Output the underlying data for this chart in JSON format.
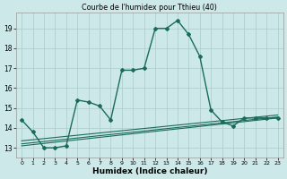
{
  "title": "Courbe de l'humidex pour Tthieu (40)",
  "xlabel": "Humidex (Indice chaleur)",
  "bg_color": "#cce8e8",
  "grid_color": "#aacccc",
  "line_color": "#1a6b5a",
  "xlim": [
    -0.5,
    23.5
  ],
  "ylim": [
    12.5,
    19.8
  ],
  "yticks": [
    13,
    14,
    15,
    16,
    17,
    18,
    19
  ],
  "xticks": [
    0,
    1,
    2,
    3,
    4,
    5,
    6,
    7,
    8,
    9,
    10,
    11,
    12,
    13,
    14,
    15,
    16,
    17,
    18,
    19,
    20,
    21,
    22,
    23
  ],
  "main_line_x": [
    0,
    1,
    2,
    3,
    4,
    5,
    6,
    7,
    8,
    9,
    10,
    11,
    12,
    13,
    14,
    15,
    16,
    17,
    18,
    19,
    20,
    21,
    22,
    23
  ],
  "main_line_y": [
    14.4,
    13.8,
    13.0,
    13.0,
    13.1,
    15.4,
    15.3,
    15.1,
    14.4,
    16.9,
    16.9,
    17.0,
    19.0,
    19.0,
    19.4,
    18.7,
    17.6,
    14.9,
    14.3,
    14.1,
    14.5,
    14.5,
    14.5,
    14.5
  ],
  "line2_x": [
    0,
    23
  ],
  "line2_y": [
    13.1,
    14.5
  ],
  "line3_x": [
    0,
    23
  ],
  "line3_y": [
    13.2,
    14.55
  ],
  "line4_x": [
    0,
    23
  ],
  "line4_y": [
    13.35,
    14.65
  ]
}
